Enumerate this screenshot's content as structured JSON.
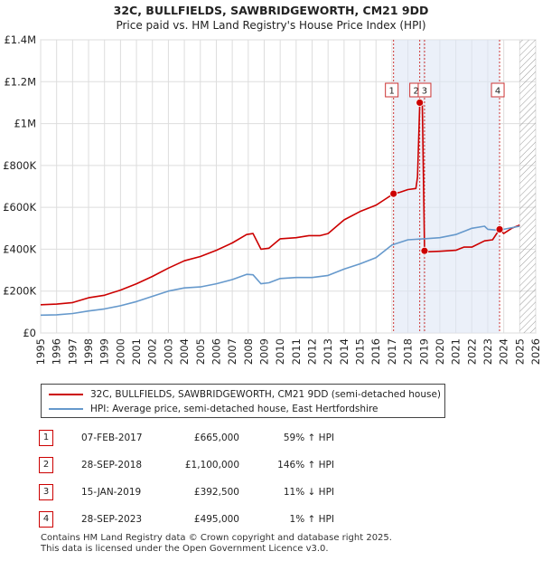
{
  "chart_data": {
    "type": "line",
    "title": "32C, BULLFIELDS, SAWBRIDGEWORTH, CM21 9DD",
    "subtitle": "Price paid vs. HM Land Registry's House Price Index (HPI)",
    "xlabel": "",
    "ylabel": "",
    "xlim": [
      1995,
      2026
    ],
    "ylim": [
      0,
      1400000
    ],
    "y_ticks": [
      {
        "value": 0,
        "label": "£0"
      },
      {
        "value": 200000,
        "label": "£200K"
      },
      {
        "value": 400000,
        "label": "£400K"
      },
      {
        "value": 600000,
        "label": "£600K"
      },
      {
        "value": 800000,
        "label": "£800K"
      },
      {
        "value": 1000000,
        "label": "£1M"
      },
      {
        "value": 1200000,
        "label": "£1.2M"
      },
      {
        "value": 1400000,
        "label": "£1.4M"
      }
    ],
    "x_ticks": [
      "1995",
      "1996",
      "1997",
      "1998",
      "1999",
      "2000",
      "2001",
      "2002",
      "2003",
      "2004",
      "2005",
      "2006",
      "2007",
      "2008",
      "2009",
      "2010",
      "2011",
      "2012",
      "2013",
      "2014",
      "2015",
      "2016",
      "2017",
      "2018",
      "2019",
      "2020",
      "2021",
      "2022",
      "2023",
      "2024",
      "2025",
      "2026"
    ],
    "grid": true,
    "colors": {
      "price": "#cc0000",
      "hpi": "#6699cc",
      "shade": "#dde6f5",
      "marker_line": "#cc3333"
    },
    "series": [
      {
        "name": "32C, BULLFIELDS, SAWBRIDGEWORTH, CM21 9DD (semi-detached house)",
        "key": "price",
        "x": [
          1995,
          1996,
          1997,
          1998,
          1999,
          2000,
          2001,
          2002,
          2003,
          2004,
          2005,
          2006,
          2007,
          2007.9,
          2008.3,
          2008.8,
          2009.3,
          2010,
          2011,
          2011.8,
          2012.5,
          2013,
          2014,
          2015,
          2016,
          2016.5,
          2017.1,
          2017.5,
          2018,
          2018.5,
          2018.6,
          2018.74,
          2018.9,
          2019.04,
          2019.3,
          2020,
          2021,
          2021.5,
          2022,
          2022.8,
          2023.3,
          2023.74,
          2024,
          2024.5,
          2025
        ],
        "values": [
          135000,
          138000,
          145000,
          168000,
          180000,
          205000,
          235000,
          270000,
          310000,
          345000,
          365000,
          395000,
          430000,
          470000,
          475000,
          400000,
          405000,
          450000,
          455000,
          465000,
          465000,
          475000,
          540000,
          580000,
          610000,
          635000,
          665000,
          672000,
          685000,
          690000,
          745000,
          1100000,
          1090000,
          392500,
          388000,
          390000,
          395000,
          410000,
          410000,
          440000,
          445000,
          495000,
          475000,
          500000,
          515000
        ]
      },
      {
        "name": "HPI: Average price, semi-detached house, East Hertfordshire",
        "key": "hpi",
        "x": [
          1995,
          1996,
          1997,
          1998,
          1999,
          2000,
          2001,
          2002,
          2003,
          2004,
          2005,
          2006,
          2007,
          2007.9,
          2008.3,
          2008.8,
          2009.3,
          2010,
          2011,
          2012,
          2013,
          2014,
          2015,
          2016,
          2017,
          2018,
          2019,
          2020,
          2021,
          2021.5,
          2022,
          2022.8,
          2023,
          2023.74,
          2024,
          2025
        ],
        "values": [
          85000,
          87000,
          93000,
          105000,
          115000,
          130000,
          150000,
          175000,
          200000,
          215000,
          220000,
          235000,
          255000,
          280000,
          278000,
          235000,
          240000,
          260000,
          265000,
          265000,
          275000,
          305000,
          330000,
          360000,
          420000,
          445000,
          450000,
          455000,
          470000,
          485000,
          500000,
          510000,
          495000,
          490000,
          495000,
          510000
        ]
      }
    ],
    "sales": [
      {
        "id": "1",
        "date": "07-FEB-2017",
        "x": 2017.1,
        "price": "£665,000",
        "value": 665000,
        "hpi": "59% ↑ HPI"
      },
      {
        "id": "2",
        "date": "28-SEP-2018",
        "x": 2018.74,
        "price": "£1,100,000",
        "value": 1100000,
        "hpi": "146% ↑ HPI"
      },
      {
        "id": "3",
        "date": "15-JAN-2019",
        "x": 2019.04,
        "price": "£392,500",
        "value": 392500,
        "hpi": "11% ↓ HPI"
      },
      {
        "id": "4",
        "date": "28-SEP-2023",
        "x": 2023.74,
        "price": "£495,000",
        "value": 495000,
        "hpi": "1% ↑ HPI"
      }
    ],
    "shaded_range": [
      2017.1,
      2023.74
    ],
    "hatch_from": 2025.0
  },
  "footer": {
    "line1": "Contains HM Land Registry data © Crown copyright and database right 2025.",
    "line2": "This data is licensed under the Open Government Licence v3.0."
  }
}
